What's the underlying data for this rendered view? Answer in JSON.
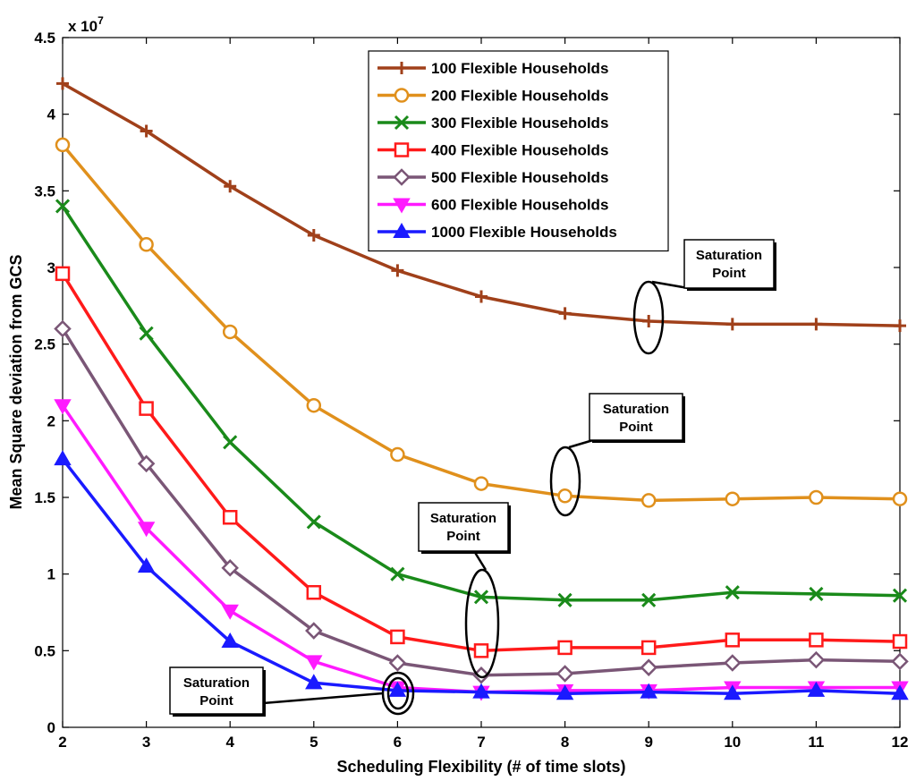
{
  "chart_data": {
    "type": "line",
    "xlabel": "Scheduling Flexibility (# of time slots)",
    "ylabel": "Mean Square deviation from GCS",
    "exponent_base": "x 10",
    "exponent_power": "7",
    "xlim": [
      2,
      12
    ],
    "ylim": [
      0,
      4.5
    ],
    "xticks": [
      2,
      3,
      4,
      5,
      6,
      7,
      8,
      9,
      10,
      11,
      12
    ],
    "xtick_labels": [
      "2",
      "3",
      "4",
      "5",
      "6",
      "7",
      "8",
      "9",
      "10",
      "11",
      "12"
    ],
    "yticks": [
      0,
      0.5,
      1,
      1.5,
      2,
      2.5,
      3,
      3.5,
      4,
      4.5
    ],
    "ytick_labels": [
      "0",
      "0.5",
      "1",
      "1.5",
      "2",
      "2.5",
      "3",
      "3.5",
      "4",
      "4.5"
    ],
    "legend_position": "top-center",
    "x": [
      2,
      3,
      4,
      5,
      6,
      7,
      8,
      9,
      10,
      11,
      12
    ],
    "series": [
      {
        "name": "100 Flexible Households",
        "color": "#a0401a",
        "marker": "plus",
        "values": [
          4.2,
          3.89,
          3.53,
          3.21,
          2.98,
          2.81,
          2.7,
          2.65,
          2.63,
          2.63,
          2.62
        ]
      },
      {
        "name": "200 Flexible Households",
        "color": "#e0901c",
        "marker": "circle",
        "values": [
          3.8,
          3.15,
          2.58,
          2.1,
          1.78,
          1.59,
          1.51,
          1.48,
          1.49,
          1.5,
          1.49
        ]
      },
      {
        "name": "300 Flexible Households",
        "color": "#1a8a1a",
        "marker": "x",
        "values": [
          3.4,
          2.57,
          1.86,
          1.34,
          1.0,
          0.85,
          0.83,
          0.83,
          0.88,
          0.87,
          0.86
        ]
      },
      {
        "name": "400 Flexible Households",
        "color": "#ff1a1a",
        "marker": "square",
        "values": [
          2.96,
          2.08,
          1.37,
          0.88,
          0.59,
          0.5,
          0.52,
          0.52,
          0.57,
          0.57,
          0.56
        ]
      },
      {
        "name": "500 Flexible Households",
        "color": "#7a5676",
        "marker": "diamond",
        "values": [
          2.6,
          1.72,
          1.04,
          0.63,
          0.42,
          0.34,
          0.35,
          0.39,
          0.42,
          0.44,
          0.43
        ]
      },
      {
        "name": "600 Flexible Households",
        "color": "#ff1aff",
        "marker": "triangle-down",
        "values": [
          2.1,
          1.3,
          0.76,
          0.43,
          0.26,
          0.23,
          0.24,
          0.24,
          0.26,
          0.26,
          0.26
        ]
      },
      {
        "name": "1000 Flexible Households",
        "color": "#1a1aff",
        "marker": "triangle-up",
        "values": [
          1.75,
          1.05,
          0.56,
          0.29,
          0.24,
          0.23,
          0.22,
          0.23,
          0.22,
          0.24,
          0.22
        ]
      }
    ],
    "annotations": [
      {
        "line1": "Saturation",
        "line2": "Point",
        "target_x": 9,
        "target_y": 2.65
      },
      {
        "line1": "Saturation",
        "line2": "Point",
        "target_x": 8,
        "target_y": 1.51
      },
      {
        "line1": "Saturation",
        "line2": "Point",
        "target_x": 7,
        "target_y": 0.65
      },
      {
        "line1": "Saturation",
        "line2": "Point",
        "target_x": 6,
        "target_y": 0.25
      }
    ]
  }
}
